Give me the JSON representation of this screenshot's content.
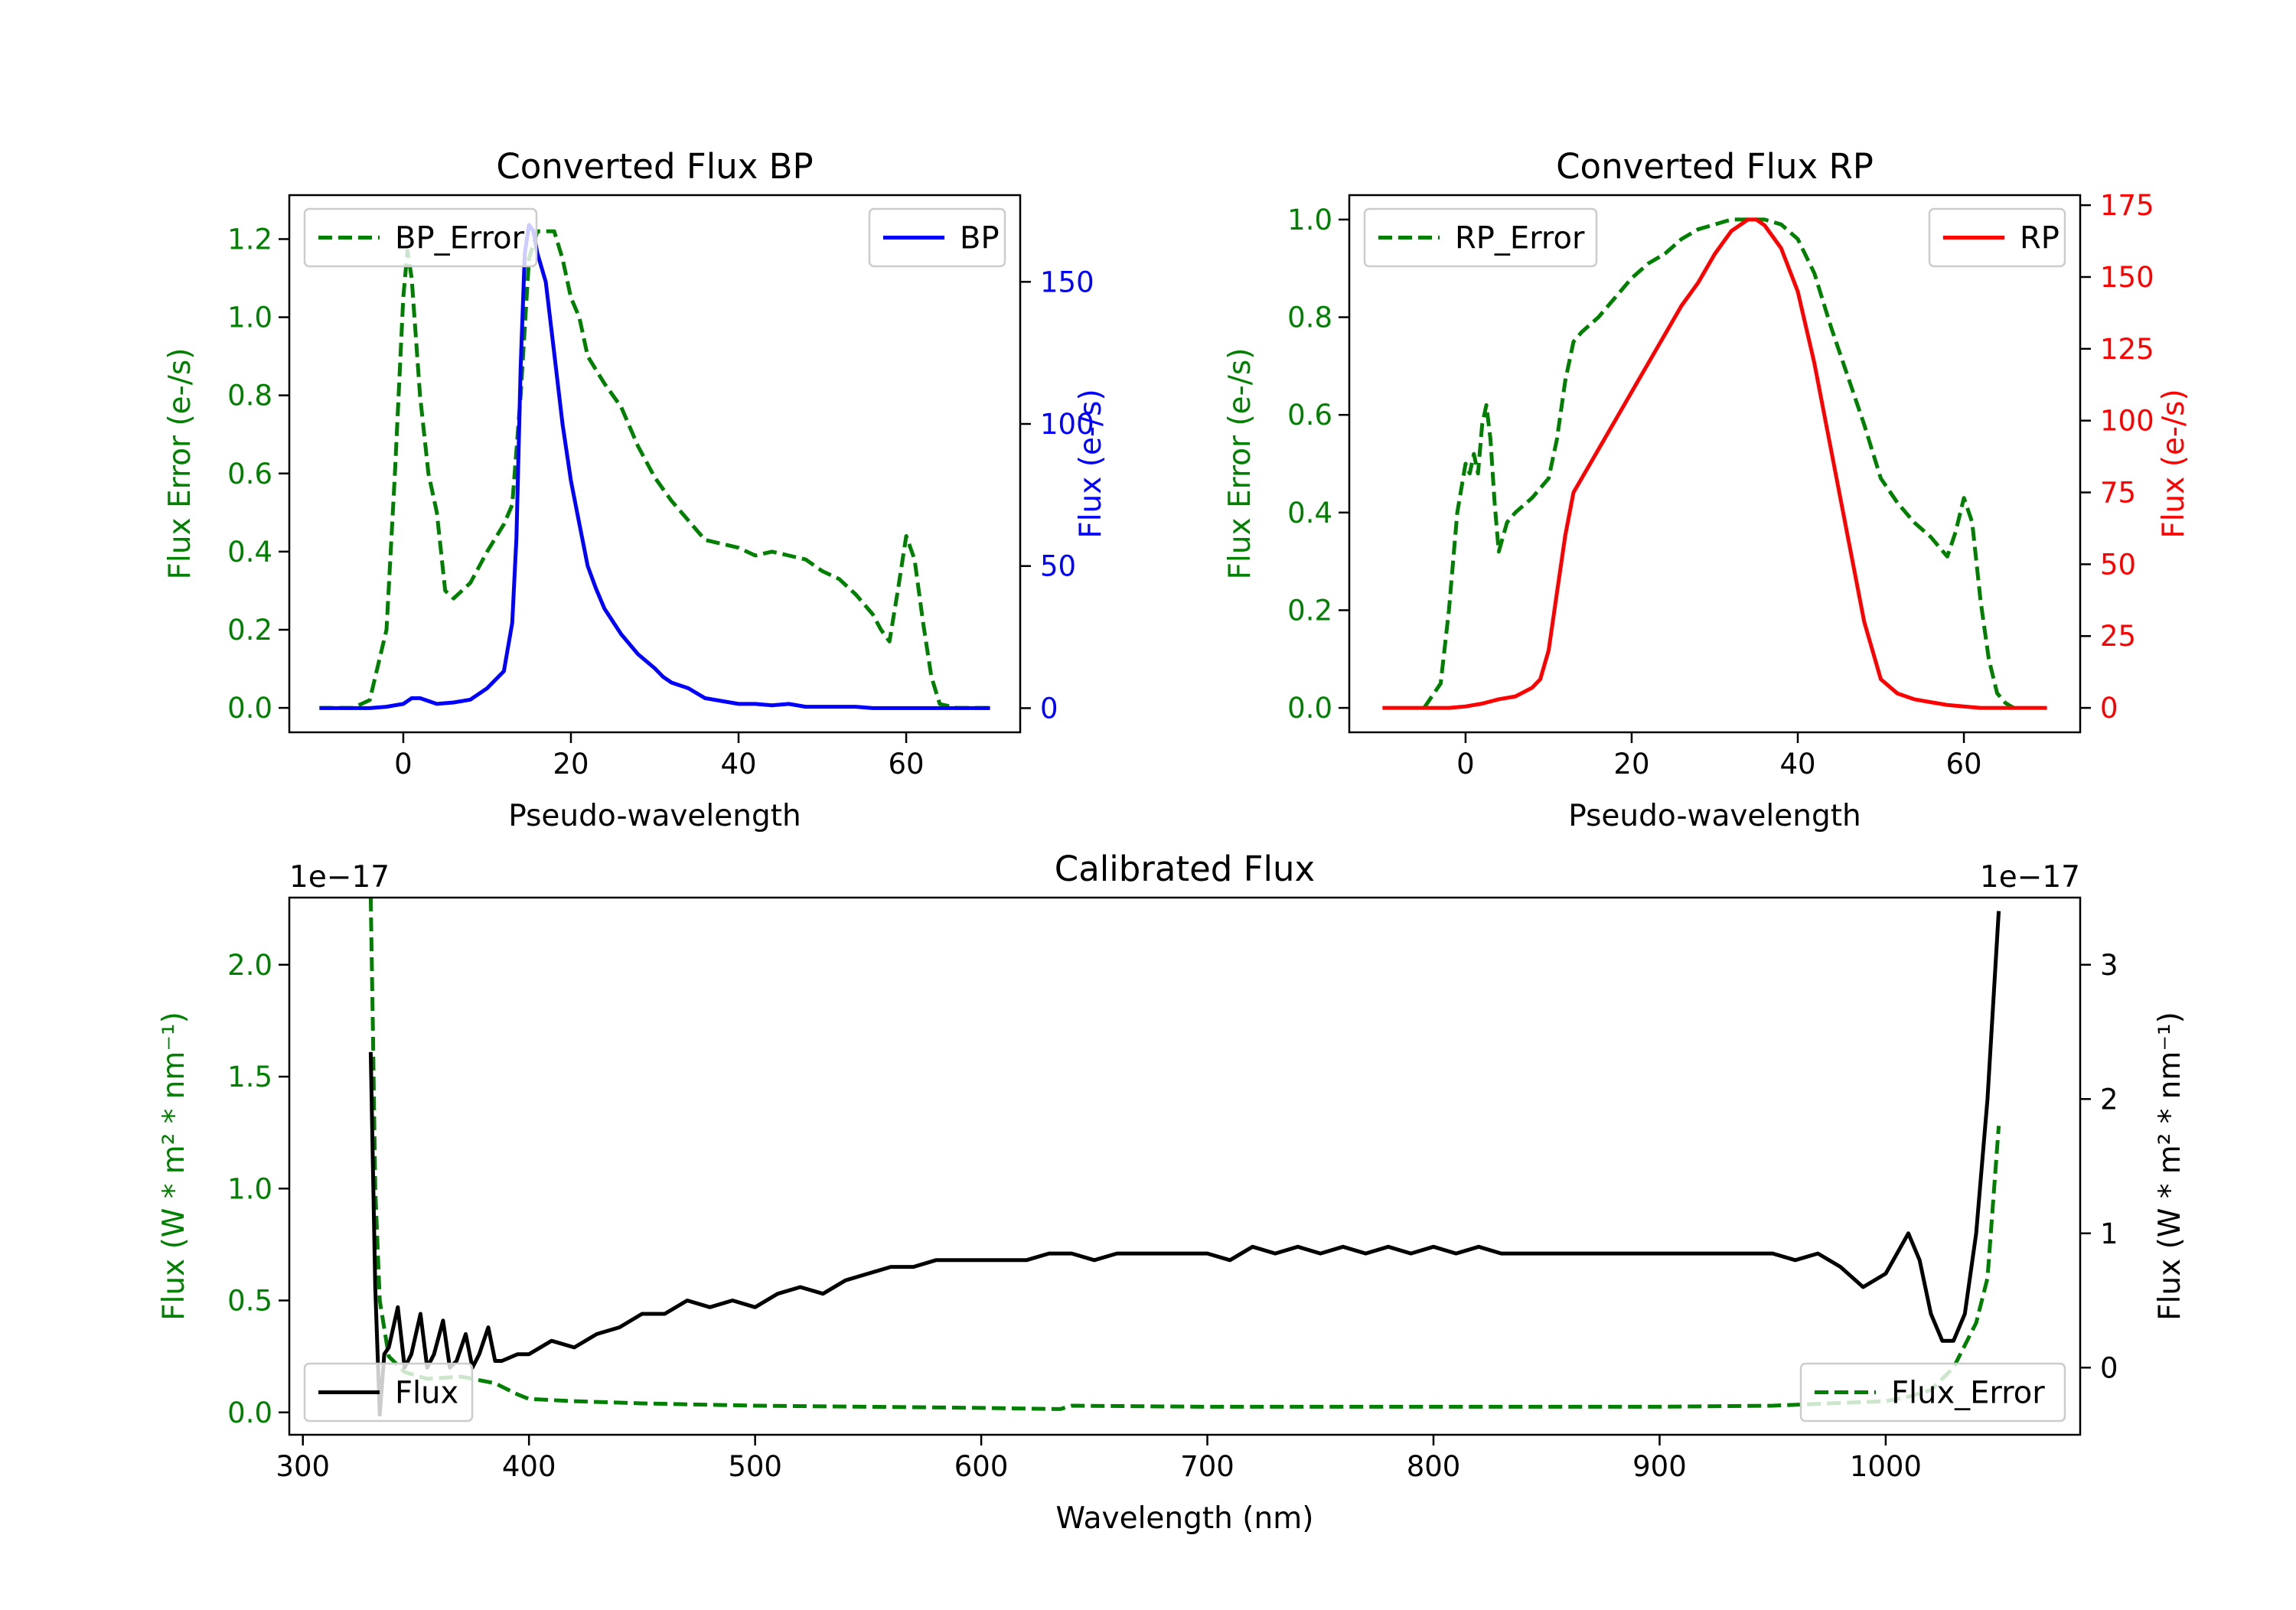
{
  "colors": {
    "bp": "#0000ff",
    "rp": "#ff0000",
    "error": "#008000",
    "flux": "#000000",
    "axis": "#000000",
    "legend_border": "#cccccc"
  },
  "chart_data": [
    {
      "id": "bp",
      "type": "line",
      "title": "Converted Flux BP",
      "xlabel": "Pseudo-wavelength",
      "ylabel_left": "Flux Error (e-/s)",
      "ylabel_right": "Flux (e-/s)",
      "xlim": [
        -13.6,
        73.6
      ],
      "ylim_left": [
        -0.0625,
        1.3125
      ],
      "ylim_right": [
        -8.5,
        180.5
      ],
      "xticks": [
        0,
        20,
        40,
        60
      ],
      "xtick_labels": [
        "0",
        "20",
        "40",
        "60"
      ],
      "yticks_left": [
        0.0,
        0.2,
        0.4,
        0.6,
        0.8,
        1.0,
        1.2
      ],
      "ytick_labels_left": [
        "0.0",
        "0.2",
        "0.4",
        "0.6",
        "0.8",
        "1.0",
        "1.2"
      ],
      "yticks_right": [
        0,
        50,
        100,
        150
      ],
      "ytick_labels_right": [
        "0",
        "50",
        "100",
        "150"
      ],
      "legend_left": {
        "label": "BP_Error",
        "position": "upper left"
      },
      "legend_right": {
        "label": "BP",
        "position": "upper right"
      },
      "series": [
        {
          "name": "BP_Error",
          "axis": "left",
          "style": "dashed",
          "color": "#008000",
          "x": [
            -10,
            -6,
            -4,
            -2,
            -1,
            0,
            0.5,
            1,
            2,
            3,
            4,
            5,
            6,
            8,
            10,
            12,
            13,
            14,
            15,
            16,
            17,
            18,
            19,
            20,
            21,
            22,
            24,
            26,
            28,
            30,
            32,
            34,
            36,
            38,
            40,
            42,
            44,
            46,
            48,
            50,
            52,
            54,
            56,
            57,
            58,
            59,
            60,
            61,
            62,
            63,
            64,
            66,
            70
          ],
          "y": [
            0,
            0,
            0.02,
            0.2,
            0.6,
            1.05,
            1.17,
            1.1,
            0.8,
            0.6,
            0.5,
            0.3,
            0.28,
            0.32,
            0.4,
            0.47,
            0.52,
            0.8,
            1.15,
            1.22,
            1.22,
            1.22,
            1.15,
            1.05,
            1.0,
            0.9,
            0.83,
            0.77,
            0.67,
            0.59,
            0.53,
            0.48,
            0.43,
            0.42,
            0.41,
            0.39,
            0.4,
            0.39,
            0.38,
            0.35,
            0.33,
            0.29,
            0.24,
            0.2,
            0.17,
            0.3,
            0.44,
            0.38,
            0.22,
            0.08,
            0.01,
            0,
            0
          ]
        },
        {
          "name": "BP",
          "axis": "right",
          "style": "solid",
          "color": "#0000ff",
          "x": [
            -10,
            -4,
            -2,
            0,
            1,
            2,
            3,
            4,
            6,
            8,
            10,
            12,
            13,
            13.5,
            14,
            14.5,
            15,
            15.5,
            16,
            17,
            18,
            19,
            20,
            21,
            22,
            23,
            24,
            26,
            28,
            30,
            31,
            32,
            33,
            34,
            36,
            38,
            40,
            42,
            44,
            46,
            48,
            50,
            52,
            54,
            56,
            58,
            60,
            62,
            64,
            66,
            68,
            70
          ],
          "y": [
            0,
            0,
            0.5,
            1.5,
            3.5,
            3.5,
            2.5,
            1.5,
            2,
            3,
            7,
            13,
            30,
            60,
            120,
            160,
            170,
            168,
            160,
            150,
            125,
            100,
            80,
            65,
            50,
            42,
            35,
            26,
            19,
            14,
            11,
            9,
            8,
            7,
            3.5,
            2.5,
            1.5,
            1.5,
            1,
            1.5,
            0.5,
            0.5,
            0.5,
            0.5,
            0,
            0,
            0,
            0,
            0,
            0,
            0,
            0
          ]
        }
      ]
    },
    {
      "id": "rp",
      "type": "line",
      "title": "Converted Flux RP",
      "xlabel": "Pseudo-wavelength",
      "ylabel_left": "Flux Error (e-/s)",
      "ylabel_right": "Flux (e-/s)",
      "xlim": [
        -14,
        74
      ],
      "ylim_left": [
        -0.05,
        1.05
      ],
      "ylim_right": [
        -8.5,
        178.5
      ],
      "xticks": [
        0,
        20,
        40,
        60
      ],
      "xtick_labels": [
        "0",
        "20",
        "40",
        "60"
      ],
      "yticks_left": [
        0.0,
        0.2,
        0.4,
        0.6,
        0.8,
        1.0
      ],
      "ytick_labels_left": [
        "0.0",
        "0.2",
        "0.4",
        "0.6",
        "0.8",
        "1.0"
      ],
      "yticks_right": [
        0,
        25,
        50,
        75,
        100,
        125,
        150,
        175
      ],
      "ytick_labels_right": [
        "0",
        "25",
        "50",
        "75",
        "100",
        "125",
        "150",
        "175"
      ],
      "legend_left": {
        "label": "RP_Error",
        "position": "upper left"
      },
      "legend_right": {
        "label": "RP",
        "position": "upper right"
      },
      "series": [
        {
          "name": "RP_Error",
          "axis": "left",
          "style": "dashed",
          "color": "#008000",
          "x": [
            -5,
            -3,
            -2,
            -1,
            0,
            0.5,
            1,
            1.5,
            2,
            2.5,
            3,
            3.5,
            4,
            5,
            6,
            8,
            10,
            11,
            12,
            13,
            14,
            16,
            18,
            20,
            22,
            24,
            26,
            28,
            30,
            32,
            34,
            36,
            38,
            40,
            42,
            44,
            46,
            48,
            50,
            52,
            54,
            56,
            57,
            58,
            59,
            60,
            61,
            62,
            63,
            64,
            65,
            66
          ],
          "y": [
            0,
            0.05,
            0.2,
            0.4,
            0.5,
            0.48,
            0.52,
            0.48,
            0.58,
            0.62,
            0.55,
            0.42,
            0.32,
            0.38,
            0.4,
            0.43,
            0.47,
            0.55,
            0.67,
            0.75,
            0.77,
            0.8,
            0.84,
            0.88,
            0.91,
            0.93,
            0.96,
            0.98,
            0.99,
            1.0,
            1.0,
            1.0,
            0.99,
            0.96,
            0.89,
            0.78,
            0.68,
            0.58,
            0.47,
            0.42,
            0.38,
            0.35,
            0.33,
            0.31,
            0.36,
            0.43,
            0.38,
            0.22,
            0.1,
            0.03,
            0.01,
            0
          ]
        },
        {
          "name": "RP",
          "axis": "right",
          "style": "solid",
          "color": "#ff0000",
          "x": [
            -10,
            -2,
            0,
            2,
            4,
            6,
            8,
            9,
            10,
            11,
            12,
            13,
            14,
            16,
            18,
            20,
            22,
            24,
            26,
            28,
            30,
            32,
            34,
            35,
            36,
            38,
            40,
            42,
            44,
            46,
            48,
            50,
            52,
            54,
            56,
            58,
            60,
            62,
            66,
            70
          ],
          "y": [
            0,
            0,
            0.5,
            1.5,
            3,
            4,
            7,
            10,
            20,
            40,
            60,
            75,
            80,
            90,
            100,
            110,
            120,
            130,
            140,
            148,
            158,
            166,
            170,
            170,
            168,
            160,
            145,
            120,
            90,
            60,
            30,
            10,
            5,
            3,
            2,
            1,
            0.5,
            0,
            0,
            0
          ]
        }
      ]
    },
    {
      "id": "calibrated",
      "type": "line",
      "title": "Calibrated Flux",
      "xlabel": "Wavelength (nm)",
      "ylabel_left": "Flux (W * m² * nm⁻¹)",
      "ylabel_right": "Flux (W * m² * nm⁻¹)",
      "offset_left": "1e−17",
      "offset_right": "1e−17",
      "xlim": [
        294,
        1086
      ],
      "ylim_left": [
        -0.1,
        2.3
      ],
      "ylim_right": [
        -0.5,
        3.5
      ],
      "xticks": [
        300,
        400,
        500,
        600,
        700,
        800,
        900,
        1000
      ],
      "xtick_labels": [
        "300",
        "400",
        "500",
        "600",
        "700",
        "800",
        "900",
        "1000"
      ],
      "yticks_left": [
        0.0,
        0.5,
        1.0,
        1.5,
        2.0
      ],
      "ytick_labels_left": [
        "0.0",
        "0.5",
        "1.0",
        "1.5",
        "2.0"
      ],
      "yticks_right": [
        0,
        1,
        2,
        3
      ],
      "ytick_labels_right": [
        "0",
        "1",
        "2",
        "3"
      ],
      "legend_left": {
        "label": "Flux",
        "position": "lower left"
      },
      "legend_right": {
        "label": "Flux_Error",
        "position": "lower right"
      },
      "series": [
        {
          "name": "Flux_Error",
          "axis": "left",
          "style": "dashed",
          "color": "#008000",
          "x": [
            330,
            331,
            332,
            334,
            338,
            345,
            355,
            370,
            385,
            395,
            400,
            420,
            450,
            500,
            550,
            600,
            635,
            640,
            700,
            800,
            900,
            950,
            1000,
            1010,
            1020,
            1030,
            1040,
            1045,
            1050
          ],
          "y": [
            2.3,
            1.7,
            1.0,
            0.5,
            0.25,
            0.18,
            0.15,
            0.16,
            0.13,
            0.08,
            0.06,
            0.05,
            0.04,
            0.03,
            0.025,
            0.02,
            0.015,
            0.03,
            0.025,
            0.025,
            0.025,
            0.03,
            0.05,
            0.07,
            0.1,
            0.2,
            0.4,
            0.6,
            1.28
          ]
        },
        {
          "name": "Flux",
          "axis": "right",
          "style": "solid",
          "color": "#000000",
          "x": [
            330,
            332,
            334,
            336,
            338,
            342,
            345,
            348,
            352,
            355,
            358,
            362,
            365,
            368,
            372,
            375,
            378,
            382,
            385,
            388,
            395,
            400,
            410,
            420,
            430,
            440,
            450,
            460,
            470,
            480,
            490,
            500,
            510,
            520,
            530,
            540,
            550,
            560,
            570,
            580,
            590,
            600,
            610,
            620,
            630,
            640,
            650,
            660,
            670,
            680,
            690,
            700,
            710,
            720,
            730,
            740,
            750,
            760,
            770,
            780,
            790,
            800,
            810,
            820,
            830,
            840,
            850,
            860,
            870,
            880,
            890,
            900,
            910,
            920,
            930,
            940,
            950,
            960,
            970,
            980,
            990,
            1000,
            1010,
            1015,
            1020,
            1025,
            1030,
            1035,
            1040,
            1045,
            1050
          ],
          "y": [
            2.35,
            0.6,
            -0.35,
            0.1,
            0.15,
            0.45,
            0.0,
            0.1,
            0.4,
            0.0,
            0.1,
            0.35,
            0.0,
            0.05,
            0.25,
            0.0,
            0.1,
            0.3,
            0.05,
            0.05,
            0.1,
            0.1,
            0.2,
            0.15,
            0.25,
            0.3,
            0.4,
            0.4,
            0.5,
            0.45,
            0.5,
            0.45,
            0.55,
            0.6,
            0.55,
            0.65,
            0.7,
            0.75,
            0.75,
            0.8,
            0.8,
            0.8,
            0.8,
            0.8,
            0.85,
            0.85,
            0.8,
            0.85,
            0.85,
            0.85,
            0.85,
            0.85,
            0.8,
            0.9,
            0.85,
            0.9,
            0.85,
            0.9,
            0.85,
            0.9,
            0.85,
            0.9,
            0.85,
            0.9,
            0.85,
            0.85,
            0.85,
            0.85,
            0.85,
            0.85,
            0.85,
            0.85,
            0.85,
            0.85,
            0.85,
            0.85,
            0.85,
            0.8,
            0.85,
            0.75,
            0.6,
            0.7,
            1.0,
            0.8,
            0.4,
            0.2,
            0.2,
            0.4,
            1.0,
            2.0,
            3.4
          ]
        }
      ]
    }
  ]
}
